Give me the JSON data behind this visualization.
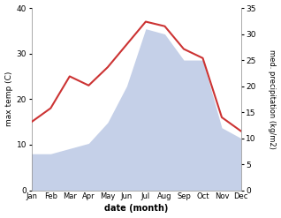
{
  "months": [
    "Jan",
    "Feb",
    "Mar",
    "Apr",
    "May",
    "Jun",
    "Jul",
    "Aug",
    "Sep",
    "Oct",
    "Nov",
    "Dec"
  ],
  "max_temp": [
    15,
    18,
    25,
    23,
    27,
    32,
    37,
    36,
    31,
    29,
    16,
    13
  ],
  "precipitation": [
    7,
    7,
    8,
    9,
    13,
    20,
    31,
    30,
    25,
    25,
    12,
    10
  ],
  "temp_color": "#cc3333",
  "precip_color": "#c5d0e8",
  "ylabel_left": "max temp (C)",
  "ylabel_right": "med. precipitation (kg/m2)",
  "xlabel": "date (month)",
  "ylim_left": [
    0,
    40
  ],
  "ylim_right": [
    0,
    35
  ],
  "yticks_left": [
    0,
    10,
    20,
    30,
    40
  ],
  "yticks_right": [
    0,
    5,
    10,
    15,
    20,
    25,
    30,
    35
  ],
  "bg_color": "#ffffff",
  "temp_linewidth": 1.5
}
